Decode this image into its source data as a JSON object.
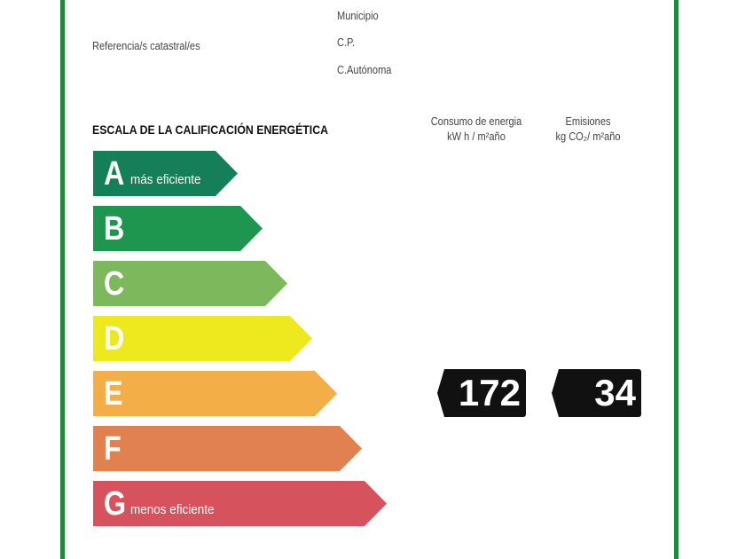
{
  "info": {
    "municipio": "Municipio",
    "referencia": "Referencia/s catastral/es",
    "cp": "C.P.",
    "autonoma": "C.Autónoma"
  },
  "scale": {
    "title": "ESCALA DE LA CALIFICACIÓN ENERGÉTICA",
    "consumo_header": [
      "Consumo de energia",
      "kW h / m²año"
    ],
    "emisiones_header": [
      "Emisiones",
      "kg CO₂/ m²año"
    ],
    "ratings": [
      {
        "letter": "A",
        "label": "más eficiente",
        "color": "#157f5a"
      },
      {
        "letter": "B",
        "label": "",
        "color": "#1f9650"
      },
      {
        "letter": "C",
        "label": "",
        "color": "#7cb85c"
      },
      {
        "letter": "D",
        "label": "",
        "color": "#eee81e"
      },
      {
        "letter": "E",
        "label": "",
        "color": "#f4ae47"
      },
      {
        "letter": "F",
        "label": "",
        "color": "#e1814f"
      },
      {
        "letter": "G",
        "label": "menos eficiente",
        "color": "#d6525c"
      }
    ],
    "consumo_value": "172",
    "emisiones_value": "34",
    "rating_row": "E"
  },
  "border_color": "#1f8a3a"
}
